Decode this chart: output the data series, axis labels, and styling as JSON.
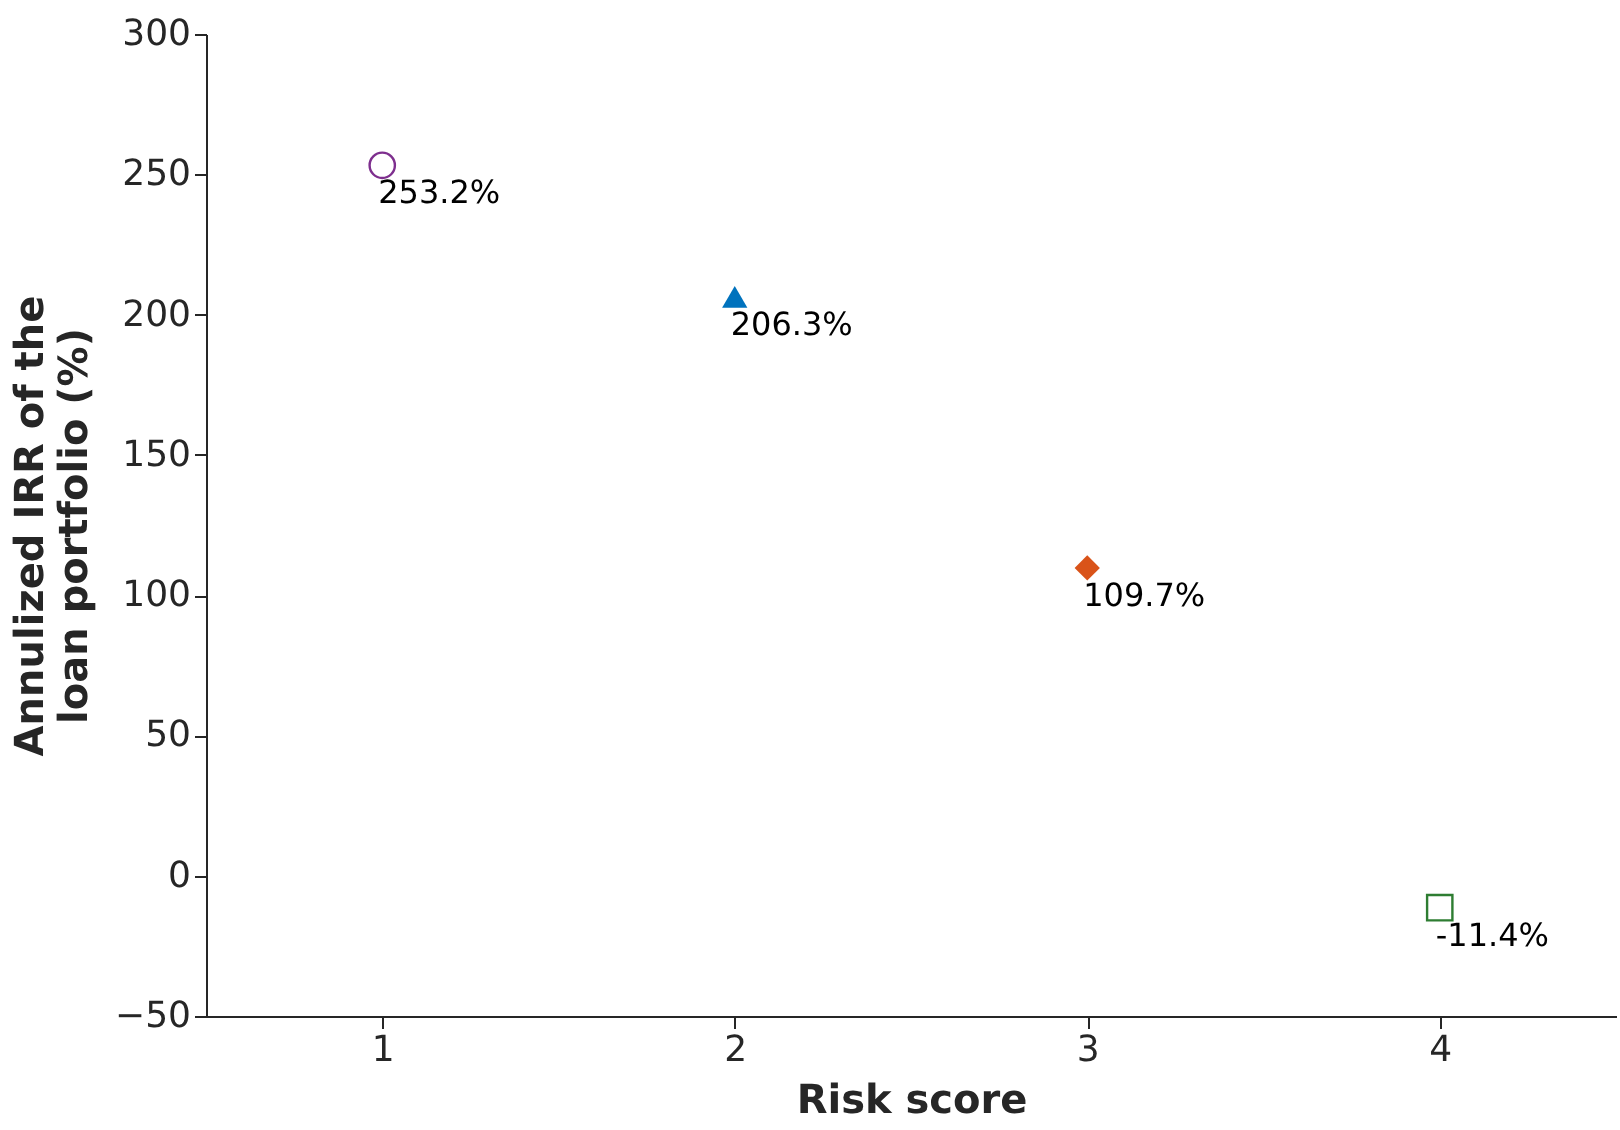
{
  "chart_data": {
    "type": "scatter",
    "xlabel": "Risk score",
    "ylabel": "Annulized IRR of the\nloan portfolio (%)",
    "xlim": [
      0.5,
      4.5
    ],
    "xticks": [
      1,
      2,
      3,
      4
    ],
    "ylim": [
      -50,
      300
    ],
    "yticks": [
      -50,
      0,
      50,
      100,
      150,
      200,
      250,
      300
    ],
    "grid": false,
    "series": [
      {
        "x": [
          1
        ],
        "values": [
          253.2
        ],
        "color": "#7e2f8e",
        "marker": "circle",
        "value_labels": [
          "253.2%"
        ]
      },
      {
        "x": [
          2
        ],
        "values": [
          206.3
        ],
        "color": "#0072bd",
        "marker": "triangle",
        "value_labels": [
          "206.3%"
        ]
      },
      {
        "x": [
          3
        ],
        "values": [
          109.7
        ],
        "color": "#d95319",
        "marker": "diamond",
        "value_labels": [
          "109.7%"
        ]
      },
      {
        "x": [
          4
        ],
        "values": [
          -11.4
        ],
        "color": "#2e7d32",
        "marker": "square",
        "value_labels": [
          "-11.4%"
        ]
      }
    ]
  }
}
